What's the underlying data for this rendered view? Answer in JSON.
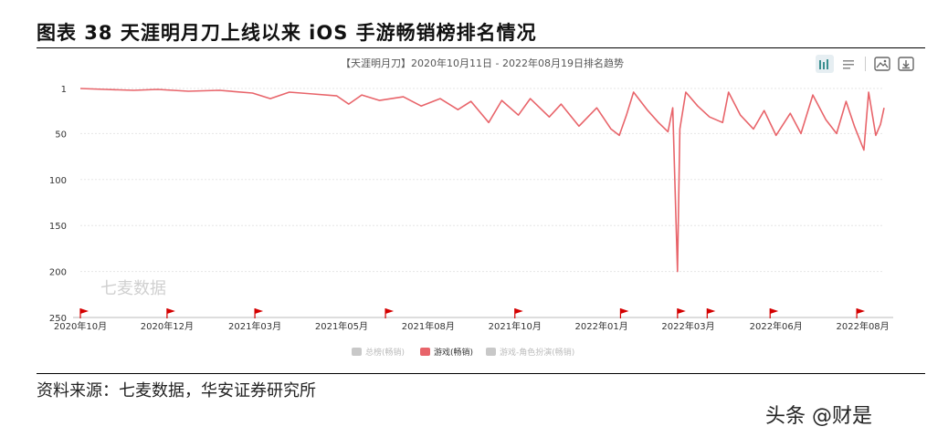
{
  "figure": {
    "title": "图表 38 天涯明月刀上线以来 iOS 手游畅销榜排名情况",
    "source": "资料来源：七麦数据，华安证券研究所",
    "credit": "头条 @财是"
  },
  "toolbar": {
    "icons": [
      "bar-chart-icon",
      "list-icon",
      "image-icon",
      "download-icon"
    ]
  },
  "colors": {
    "series": "#e8646a",
    "legend_inactive": "#c8c8c8",
    "flag": "#d40000",
    "grid": "#e6e6e6"
  },
  "chart_data": {
    "type": "line",
    "title": "【天涯明月刀】2020年10月11日 - 2022年08月19日排名趋势",
    "watermark": "七麦数据",
    "y_inverted": true,
    "ylim": [
      1,
      250
    ],
    "y_ticks": [
      1,
      50,
      100,
      150,
      200,
      250
    ],
    "x_range": [
      "2020-10-11",
      "2022-08-19"
    ],
    "x_tick_labels": [
      "2020年10月",
      "2020年12月",
      "2021年03月",
      "2021年05月",
      "2021年08月",
      "2021年10月",
      "2022年01月",
      "2022年03月",
      "2022年06月",
      "2022年08月"
    ],
    "x_tick_dates": [
      "2020-10-11",
      "2020-12-23",
      "2021-03-07",
      "2021-05-19",
      "2021-07-31",
      "2021-10-12",
      "2021-12-24",
      "2022-03-07",
      "2022-05-20",
      "2022-08-01"
    ],
    "legend": [
      {
        "name": "总榜(畅销)",
        "active": false
      },
      {
        "name": "游戏(畅销)",
        "active": true
      },
      {
        "name": "游戏-角色扮演(畅销)",
        "active": false
      }
    ],
    "event_flags": [
      "2020-10-11",
      "2020-12-23",
      "2021-03-07",
      "2021-06-25",
      "2021-10-12",
      "2022-01-09",
      "2022-02-26",
      "2022-03-23",
      "2022-05-15",
      "2022-07-27"
    ],
    "series": [
      {
        "name": "游戏(畅销)",
        "points": [
          [
            "2020-10-11",
            1
          ],
          [
            "2020-11-01",
            2
          ],
          [
            "2020-11-25",
            3
          ],
          [
            "2020-12-15",
            2
          ],
          [
            "2021-01-10",
            4
          ],
          [
            "2021-02-05",
            3
          ],
          [
            "2021-03-05",
            6
          ],
          [
            "2021-03-20",
            12
          ],
          [
            "2021-04-05",
            5
          ],
          [
            "2021-04-25",
            7
          ],
          [
            "2021-05-15",
            9
          ],
          [
            "2021-05-25",
            18
          ],
          [
            "2021-06-05",
            8
          ],
          [
            "2021-06-20",
            14
          ],
          [
            "2021-07-10",
            10
          ],
          [
            "2021-07-25",
            20
          ],
          [
            "2021-08-10",
            12
          ],
          [
            "2021-08-25",
            24
          ],
          [
            "2021-09-05",
            15
          ],
          [
            "2021-09-20",
            38
          ],
          [
            "2021-10-01",
            14
          ],
          [
            "2021-10-15",
            30
          ],
          [
            "2021-10-25",
            12
          ],
          [
            "2021-11-10",
            32
          ],
          [
            "2021-11-20",
            18
          ],
          [
            "2021-12-05",
            42
          ],
          [
            "2021-12-20",
            22
          ],
          [
            "2022-01-01",
            45
          ],
          [
            "2022-01-08",
            52
          ],
          [
            "2022-01-14",
            30
          ],
          [
            "2022-01-20",
            5
          ],
          [
            "2022-02-01",
            25
          ],
          [
            "2022-02-10",
            38
          ],
          [
            "2022-02-18",
            48
          ],
          [
            "2022-02-22",
            22
          ],
          [
            "2022-02-26",
            200
          ],
          [
            "2022-02-28",
            45
          ],
          [
            "2022-03-05",
            5
          ],
          [
            "2022-03-15",
            20
          ],
          [
            "2022-03-25",
            32
          ],
          [
            "2022-04-05",
            38
          ],
          [
            "2022-04-10",
            5
          ],
          [
            "2022-04-20",
            30
          ],
          [
            "2022-05-01",
            45
          ],
          [
            "2022-05-10",
            25
          ],
          [
            "2022-05-20",
            52
          ],
          [
            "2022-06-01",
            28
          ],
          [
            "2022-06-10",
            50
          ],
          [
            "2022-06-20",
            8
          ],
          [
            "2022-07-01",
            35
          ],
          [
            "2022-07-10",
            50
          ],
          [
            "2022-07-18",
            15
          ],
          [
            "2022-07-25",
            42
          ],
          [
            "2022-08-02",
            68
          ],
          [
            "2022-08-06",
            5
          ],
          [
            "2022-08-12",
            52
          ],
          [
            "2022-08-16",
            40
          ],
          [
            "2022-08-19",
            22
          ]
        ]
      }
    ]
  }
}
